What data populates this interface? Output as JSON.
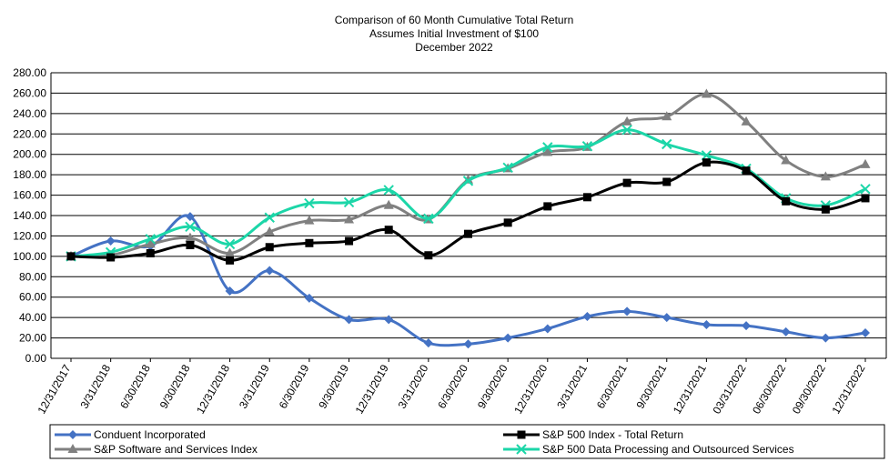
{
  "chart_data": {
    "type": "line",
    "title": [
      "Comparison of 60 Month Cumulative Total Return",
      "Assumes Initial Investment of $100",
      "December 2022"
    ],
    "xlabel": "",
    "ylabel": "",
    "ylim": [
      0,
      280
    ],
    "yticks": [
      "0.00",
      "20.00",
      "40.00",
      "60.00",
      "80.00",
      "100.00",
      "120.00",
      "140.00",
      "160.00",
      "180.00",
      "200.00",
      "220.00",
      "240.00",
      "260.00",
      "280.00"
    ],
    "grid": "horizontal",
    "legend_position": "bottom",
    "categories": [
      "12/31/2017",
      "3/31/2018",
      "6/30/2018",
      "9/30/2018",
      "12/31/2018",
      "3/31/2019",
      "6/30/2019",
      "9/30/2019",
      "12/31/2019",
      "3/31/2020",
      "6/30/2020",
      "9/30/2020",
      "12/31/2020",
      "3/31/2021",
      "6/30/2021",
      "9/30/2021",
      "12/31/2021",
      "03/31/2022",
      "06/30/2022",
      "09/30/2022",
      "12/31/2022"
    ],
    "series": [
      {
        "name": "Conduent Incorporated",
        "color": "#4472C4",
        "marker": "diamond",
        "values": [
          100,
          115,
          110,
          139,
          66,
          86,
          59,
          38,
          38,
          15,
          14,
          20,
          29,
          41,
          46,
          40,
          33,
          32,
          26,
          20,
          25
        ]
      },
      {
        "name": "S&P 500 Index - Total Return",
        "color": "#000000",
        "marker": "square",
        "values": [
          100,
          99,
          103,
          111,
          96,
          109,
          113,
          115,
          126,
          101,
          122,
          133,
          149,
          158,
          172,
          173,
          192,
          184,
          154,
          146,
          157
        ]
      },
      {
        "name": "S&P Software and Services Index",
        "color": "#808080",
        "marker": "triangle",
        "values": [
          100,
          101,
          112,
          118,
          103,
          124,
          135,
          136,
          150,
          136,
          175,
          186,
          202,
          207,
          232,
          237,
          259,
          232,
          194,
          178,
          190
        ]
      },
      {
        "name": "S&P 500 Data Processing and Outsourced Services",
        "color": "#1CD6A8",
        "marker": "x",
        "values": [
          100,
          104,
          117,
          129,
          112,
          138,
          152,
          153,
          165,
          137,
          174,
          187,
          207,
          208,
          224,
          210,
          199,
          186,
          157,
          150,
          166
        ]
      }
    ]
  }
}
